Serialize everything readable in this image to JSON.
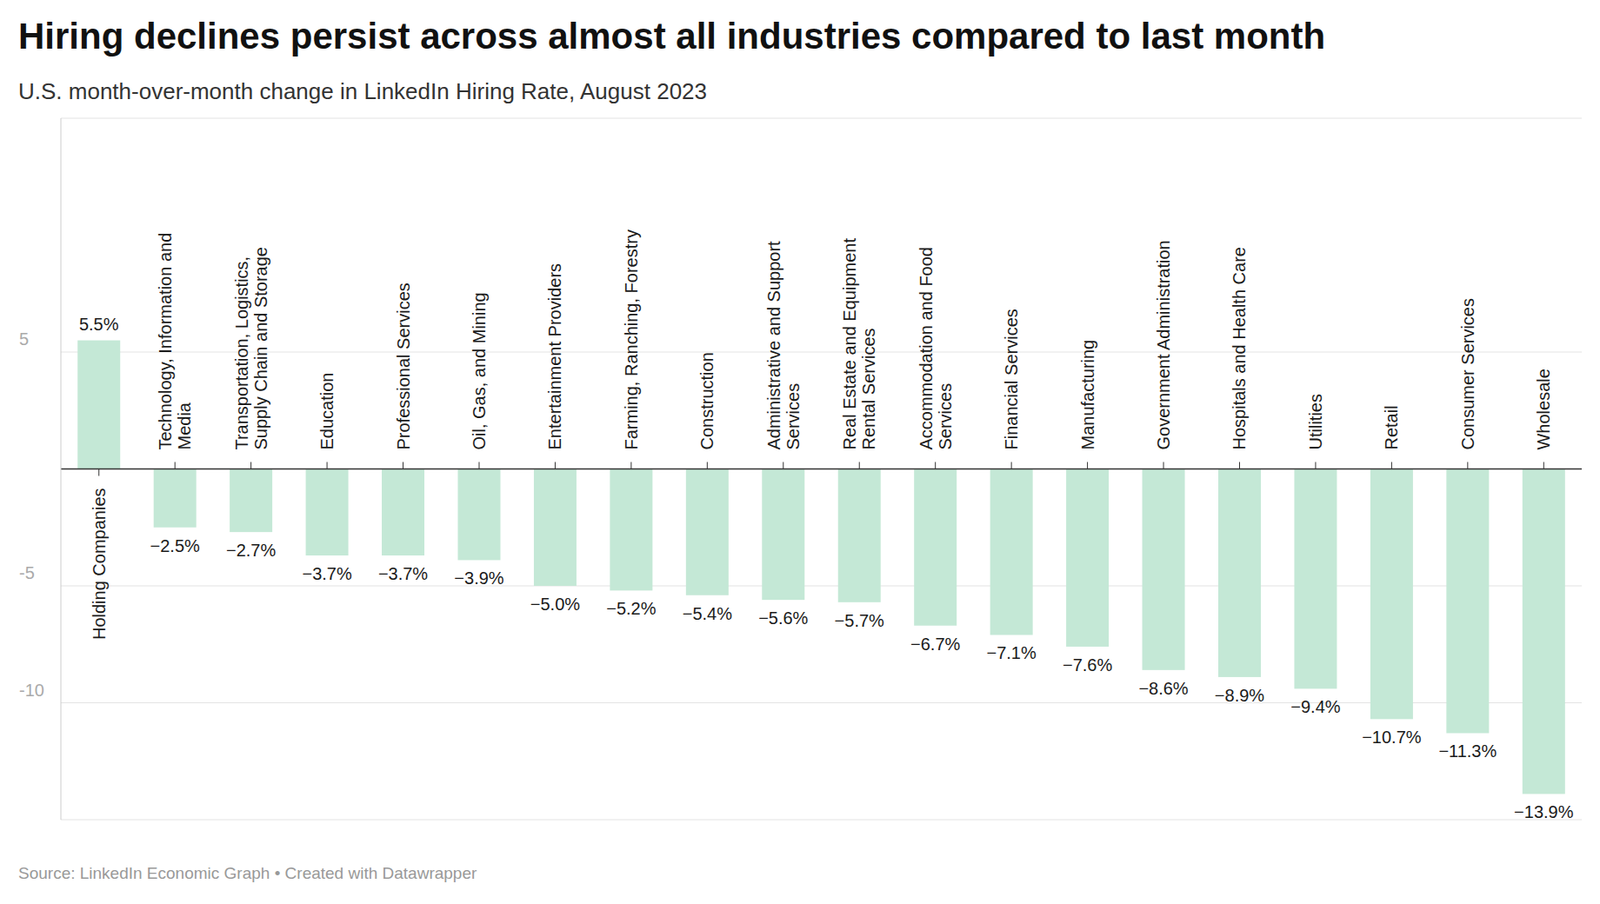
{
  "chart_data": {
    "type": "bar",
    "title": "Hiring declines persist across almost all industries compared to last month",
    "subtitle": "U.S. month-over-month change in LinkedIn Hiring Rate, August 2023",
    "source": "Source: LinkedIn Economic Graph • Created with Datawrapper",
    "categories": [
      "Holding Companies",
      "Technology, Information and Media",
      "Transportation, Logistics, Supply Chain and Storage",
      "Education",
      "Professional Services",
      "Oil, Gas, and Mining",
      "Entertainment Providers",
      "Farming, Ranching, Forestry",
      "Construction",
      "Administrative and Support Services",
      "Real Estate and Equipment Rental Services",
      "Accommodation and Food Services",
      "Financial Services",
      "Manufacturing",
      "Government Administration",
      "Hospitals and Health Care",
      "Utilities",
      "Retail",
      "Consumer Services",
      "Wholesale"
    ],
    "values": [
      5.5,
      -2.5,
      -2.7,
      -3.7,
      -3.7,
      -3.9,
      -5.0,
      -5.2,
      -5.4,
      -5.6,
      -5.7,
      -6.7,
      -7.1,
      -7.6,
      -8.6,
      -8.9,
      -9.4,
      -10.7,
      -11.3,
      -13.9
    ],
    "value_labels": [
      "5.5%",
      "−2.5%",
      "−2.7%",
      "−3.7%",
      "−3.7%",
      "−3.9%",
      "−5.0%",
      "−5.2%",
      "−5.4%",
      "−5.6%",
      "−5.7%",
      "−6.7%",
      "−7.1%",
      "−7.6%",
      "−8.6%",
      "−8.9%",
      "−9.4%",
      "−10.7%",
      "−11.3%",
      "−13.9%"
    ],
    "color": "#c4e8d6",
    "ylim": [
      -15,
      15
    ],
    "yticks": [
      -10,
      -5,
      5
    ],
    "grid": true,
    "data_labels": true
  }
}
